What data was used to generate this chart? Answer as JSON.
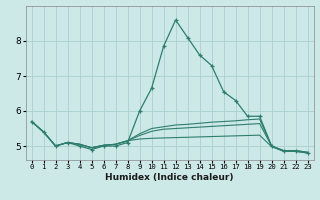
{
  "xlabel": "Humidex (Indice chaleur)",
  "ylabel": "",
  "bg_color": "#cce9e8",
  "grid_color": "#aacfce",
  "line_color": "#2e7d6e",
  "xlim": [
    -0.5,
    23.5
  ],
  "ylim": [
    4.6,
    9.0
  ],
  "yticks": [
    5,
    6,
    7,
    8
  ],
  "xticks": [
    0,
    1,
    2,
    3,
    4,
    5,
    6,
    7,
    8,
    9,
    10,
    11,
    12,
    13,
    14,
    15,
    16,
    17,
    18,
    19,
    20,
    21,
    22,
    23
  ],
  "lines": [
    {
      "x": [
        0,
        1,
        2,
        3,
        4,
        5,
        6,
        7,
        8,
        9,
        10,
        11,
        12,
        13,
        14,
        15,
        16,
        17,
        18,
        19,
        20,
        21,
        22,
        23
      ],
      "y": [
        5.7,
        5.4,
        5.0,
        5.1,
        5.0,
        4.9,
        5.0,
        5.0,
        5.1,
        6.0,
        6.65,
        7.85,
        8.6,
        8.1,
        7.6,
        7.3,
        6.55,
        6.3,
        5.85,
        5.85,
        5.0,
        4.85,
        4.85,
        4.8
      ],
      "marker": true
    },
    {
      "x": [
        0,
        1,
        2,
        3,
        4,
        5,
        6,
        7,
        8,
        9,
        10,
        11,
        12,
        13,
        14,
        15,
        16,
        17,
        18,
        19,
        20,
        21,
        22,
        23
      ],
      "y": [
        5.7,
        5.4,
        5.0,
        5.1,
        5.05,
        4.95,
        5.02,
        5.05,
        5.15,
        5.35,
        5.5,
        5.55,
        5.6,
        5.62,
        5.65,
        5.68,
        5.7,
        5.72,
        5.75,
        5.77,
        5.0,
        4.87,
        4.87,
        4.82
      ],
      "marker": false
    },
    {
      "x": [
        0,
        1,
        2,
        3,
        4,
        5,
        6,
        7,
        8,
        9,
        10,
        11,
        12,
        13,
        14,
        15,
        16,
        17,
        18,
        19,
        20,
        21,
        22,
        23
      ],
      "y": [
        5.7,
        5.4,
        5.0,
        5.1,
        5.05,
        4.95,
        5.02,
        5.05,
        5.15,
        5.3,
        5.42,
        5.48,
        5.5,
        5.52,
        5.54,
        5.56,
        5.58,
        5.6,
        5.62,
        5.64,
        5.0,
        4.87,
        4.87,
        4.82
      ],
      "marker": false
    },
    {
      "x": [
        0,
        1,
        2,
        3,
        4,
        5,
        6,
        7,
        8,
        9,
        10,
        11,
        12,
        13,
        14,
        15,
        16,
        17,
        18,
        19,
        20,
        21,
        22,
        23
      ],
      "y": [
        5.7,
        5.4,
        5.0,
        5.1,
        5.05,
        4.95,
        5.02,
        5.05,
        5.15,
        5.2,
        5.22,
        5.23,
        5.24,
        5.25,
        5.26,
        5.27,
        5.28,
        5.29,
        5.3,
        5.31,
        4.98,
        4.85,
        4.85,
        4.8
      ],
      "marker": false
    }
  ]
}
